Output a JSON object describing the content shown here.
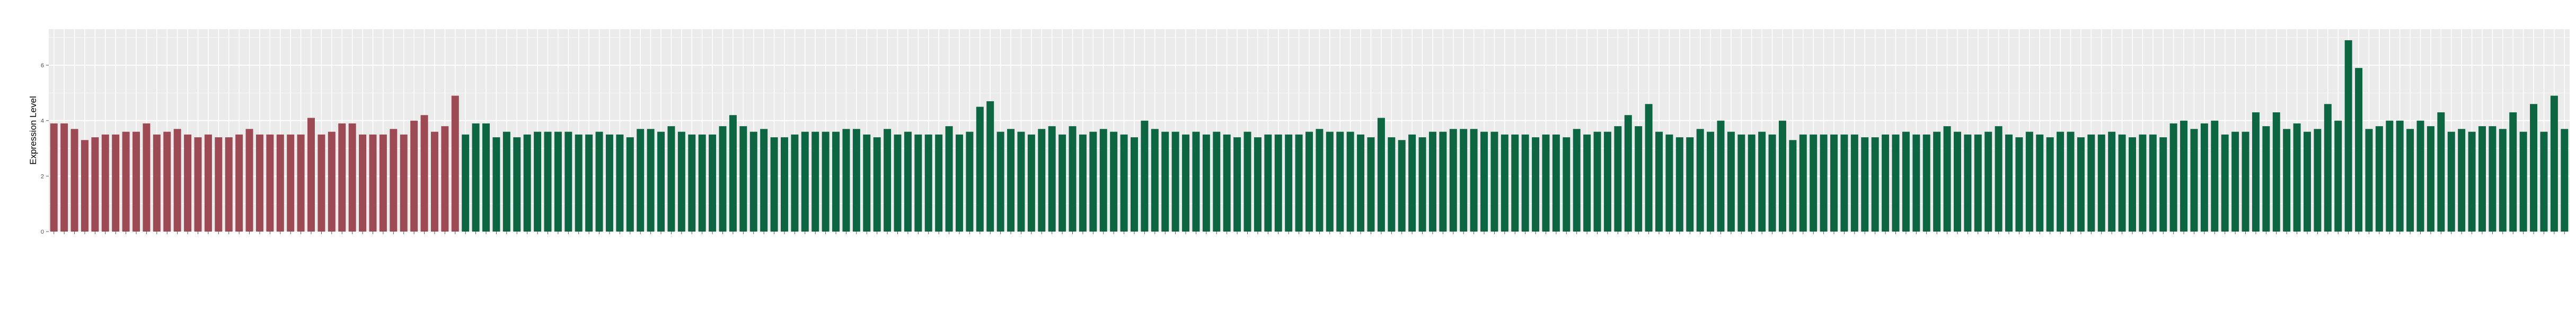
{
  "chart_data": {
    "type": "bar",
    "ylabel": "Expression Level",
    "xlabel": "",
    "title": "",
    "ylim": [
      0,
      7.3
    ],
    "y_ticks": [
      0,
      2,
      4,
      6
    ],
    "grid": true,
    "legend": "none",
    "panel_color": "#ebebeb",
    "grid_color": "#ffffff",
    "group_colors": {
      "A": "#9e4a55",
      "B": "#0c6641"
    },
    "group_a_count": 40,
    "x_tick_labels": "illegible (small rotated sample IDs)",
    "values": [
      3.9,
      3.9,
      3.7,
      3.3,
      3.4,
      3.5,
      3.5,
      3.6,
      3.6,
      3.9,
      3.5,
      3.6,
      3.7,
      3.5,
      3.4,
      3.5,
      3.4,
      3.4,
      3.5,
      3.7,
      3.5,
      3.5,
      3.5,
      3.5,
      3.5,
      4.1,
      3.5,
      3.6,
      3.9,
      3.9,
      3.5,
      3.5,
      3.5,
      3.7,
      3.5,
      4.0,
      4.2,
      3.6,
      3.8,
      4.9,
      3.5,
      3.9,
      3.9,
      3.4,
      3.6,
      3.4,
      3.5,
      3.6,
      3.6,
      3.6,
      3.6,
      3.5,
      3.5,
      3.6,
      3.5,
      3.5,
      3.4,
      3.7,
      3.7,
      3.6,
      3.8,
      3.6,
      3.5,
      3.5,
      3.5,
      3.8,
      4.2,
      3.8,
      3.6,
      3.7,
      3.4,
      3.4,
      3.5,
      3.6,
      3.6,
      3.6,
      3.6,
      3.7,
      3.7,
      3.5,
      3.4,
      3.7,
      3.5,
      3.6,
      3.5,
      3.5,
      3.5,
      3.8,
      3.5,
      3.6,
      4.5,
      4.7,
      3.6,
      3.7,
      3.6,
      3.5,
      3.7,
      3.8,
      3.5,
      3.8,
      3.5,
      3.6,
      3.7,
      3.6,
      3.5,
      3.4,
      4.0,
      3.7,
      3.6,
      3.6,
      3.5,
      3.6,
      3.5,
      3.6,
      3.5,
      3.4,
      3.6,
      3.4,
      3.5,
      3.5,
      3.5,
      3.5,
      3.6,
      3.7,
      3.6,
      3.6,
      3.6,
      3.5,
      3.4,
      4.1,
      3.4,
      3.3,
      3.5,
      3.4,
      3.6,
      3.6,
      3.7,
      3.7,
      3.7,
      3.6,
      3.6,
      3.5,
      3.5,
      3.5,
      3.4,
      3.5,
      3.5,
      3.4,
      3.7,
      3.5,
      3.6,
      3.6,
      3.8,
      4.2,
      3.8,
      4.6,
      3.6,
      3.5,
      3.4,
      3.4,
      3.7,
      3.6,
      4.0,
      3.6,
      3.5,
      3.5,
      3.6,
      3.5,
      4.0,
      3.3,
      3.5,
      3.5,
      3.5,
      3.5,
      3.5,
      3.5,
      3.4,
      3.4,
      3.5,
      3.5,
      3.6,
      3.5,
      3.5,
      3.6,
      3.8,
      3.6,
      3.5,
      3.5,
      3.6,
      3.8,
      3.5,
      3.4,
      3.6,
      3.5,
      3.4,
      3.6,
      3.6,
      3.4,
      3.5,
      3.5,
      3.6,
      3.5,
      3.4,
      3.5,
      3.5,
      3.4,
      3.9,
      4.0,
      3.7,
      3.9,
      4.0,
      3.5,
      3.6,
      3.6,
      4.3,
      3.8,
      4.3,
      3.7,
      3.9,
      3.6,
      3.7,
      4.6,
      4.0,
      6.9,
      5.9,
      3.7,
      3.8,
      4.0,
      4.0,
      3.7,
      4.0,
      3.8,
      4.3,
      3.6,
      3.7,
      3.6,
      3.8,
      3.8,
      3.7,
      4.3,
      3.6,
      4.6,
      3.6,
      4.9,
      3.7
    ]
  }
}
